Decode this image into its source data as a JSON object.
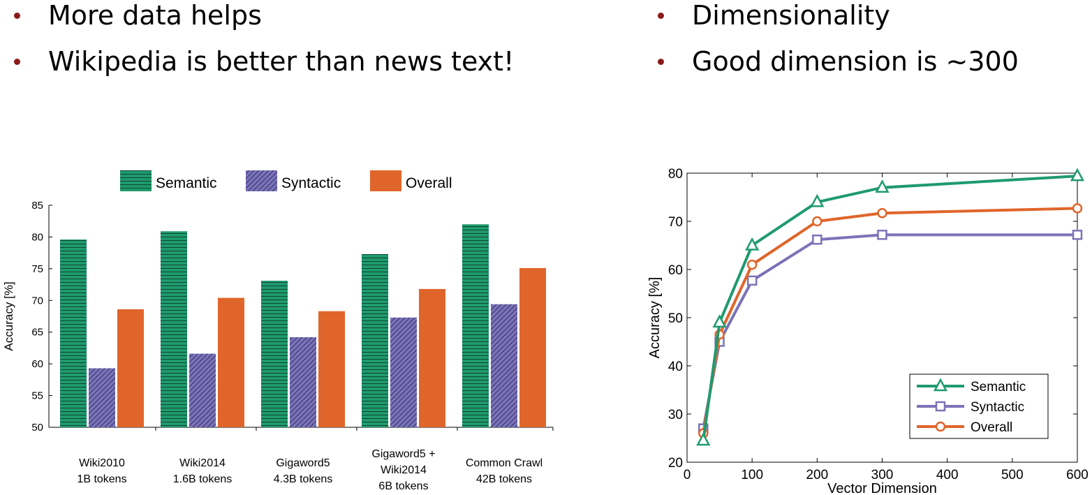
{
  "left_bullets": [
    "More data helps",
    "Wikipedia is better than news text!"
  ],
  "right_bullets": [
    "Dimensionality",
    "Good dimension is ~300"
  ],
  "colors": {
    "semantic": "#1f9a6f",
    "syntactic": "#7b73b8",
    "overall": "#e0652a",
    "bullet": "#8b1a1a"
  },
  "chart_data": [
    {
      "type": "bar",
      "title": "",
      "xlabel": "",
      "ylabel": "Accuracy [%]",
      "ylim": [
        50,
        85
      ],
      "yticks": [
        50,
        55,
        60,
        65,
        70,
        75,
        80,
        85
      ],
      "categories": [
        [
          "Wiki2010",
          "1B tokens"
        ],
        [
          "Wiki2014",
          "1.6B tokens"
        ],
        [
          "Gigaword5",
          "4.3B tokens"
        ],
        [
          "Gigaword5 +",
          "Wiki2014",
          "6B tokens"
        ],
        [
          "Common Crawl",
          "42B tokens"
        ]
      ],
      "series": [
        {
          "name": "Semantic",
          "pattern": "horizontal",
          "values": [
            79.6,
            80.9,
            73.1,
            77.3,
            82.0
          ]
        },
        {
          "name": "Syntactic",
          "pattern": "diagonal",
          "values": [
            59.3,
            61.6,
            64.2,
            67.3,
            69.4
          ]
        },
        {
          "name": "Overall",
          "pattern": "solid",
          "values": [
            68.6,
            70.4,
            68.3,
            71.8,
            75.1
          ]
        }
      ],
      "legend": "top",
      "grid": false
    },
    {
      "type": "line",
      "title": "",
      "xlabel": "Vector Dimension",
      "ylabel": "Accuracy [%]",
      "xlim": [
        0,
        600
      ],
      "ylim": [
        20,
        80
      ],
      "xticks": [
        0,
        100,
        200,
        300,
        400,
        500,
        600
      ],
      "yticks": [
        20,
        30,
        40,
        50,
        60,
        70,
        80
      ],
      "x": [
        25,
        50,
        100,
        200,
        300,
        600
      ],
      "series": [
        {
          "name": "Semantic",
          "marker": "triangle",
          "values": [
            24.5,
            49.0,
            65.0,
            74.0,
            77.0,
            79.4
          ]
        },
        {
          "name": "Syntactic",
          "marker": "square",
          "values": [
            27.0,
            45.0,
            57.7,
            66.2,
            67.2,
            67.2
          ]
        },
        {
          "name": "Overall",
          "marker": "circle",
          "values": [
            26.0,
            46.5,
            61.0,
            70.0,
            71.7,
            72.7
          ]
        }
      ],
      "legend": "bottom-right",
      "grid": false
    }
  ]
}
